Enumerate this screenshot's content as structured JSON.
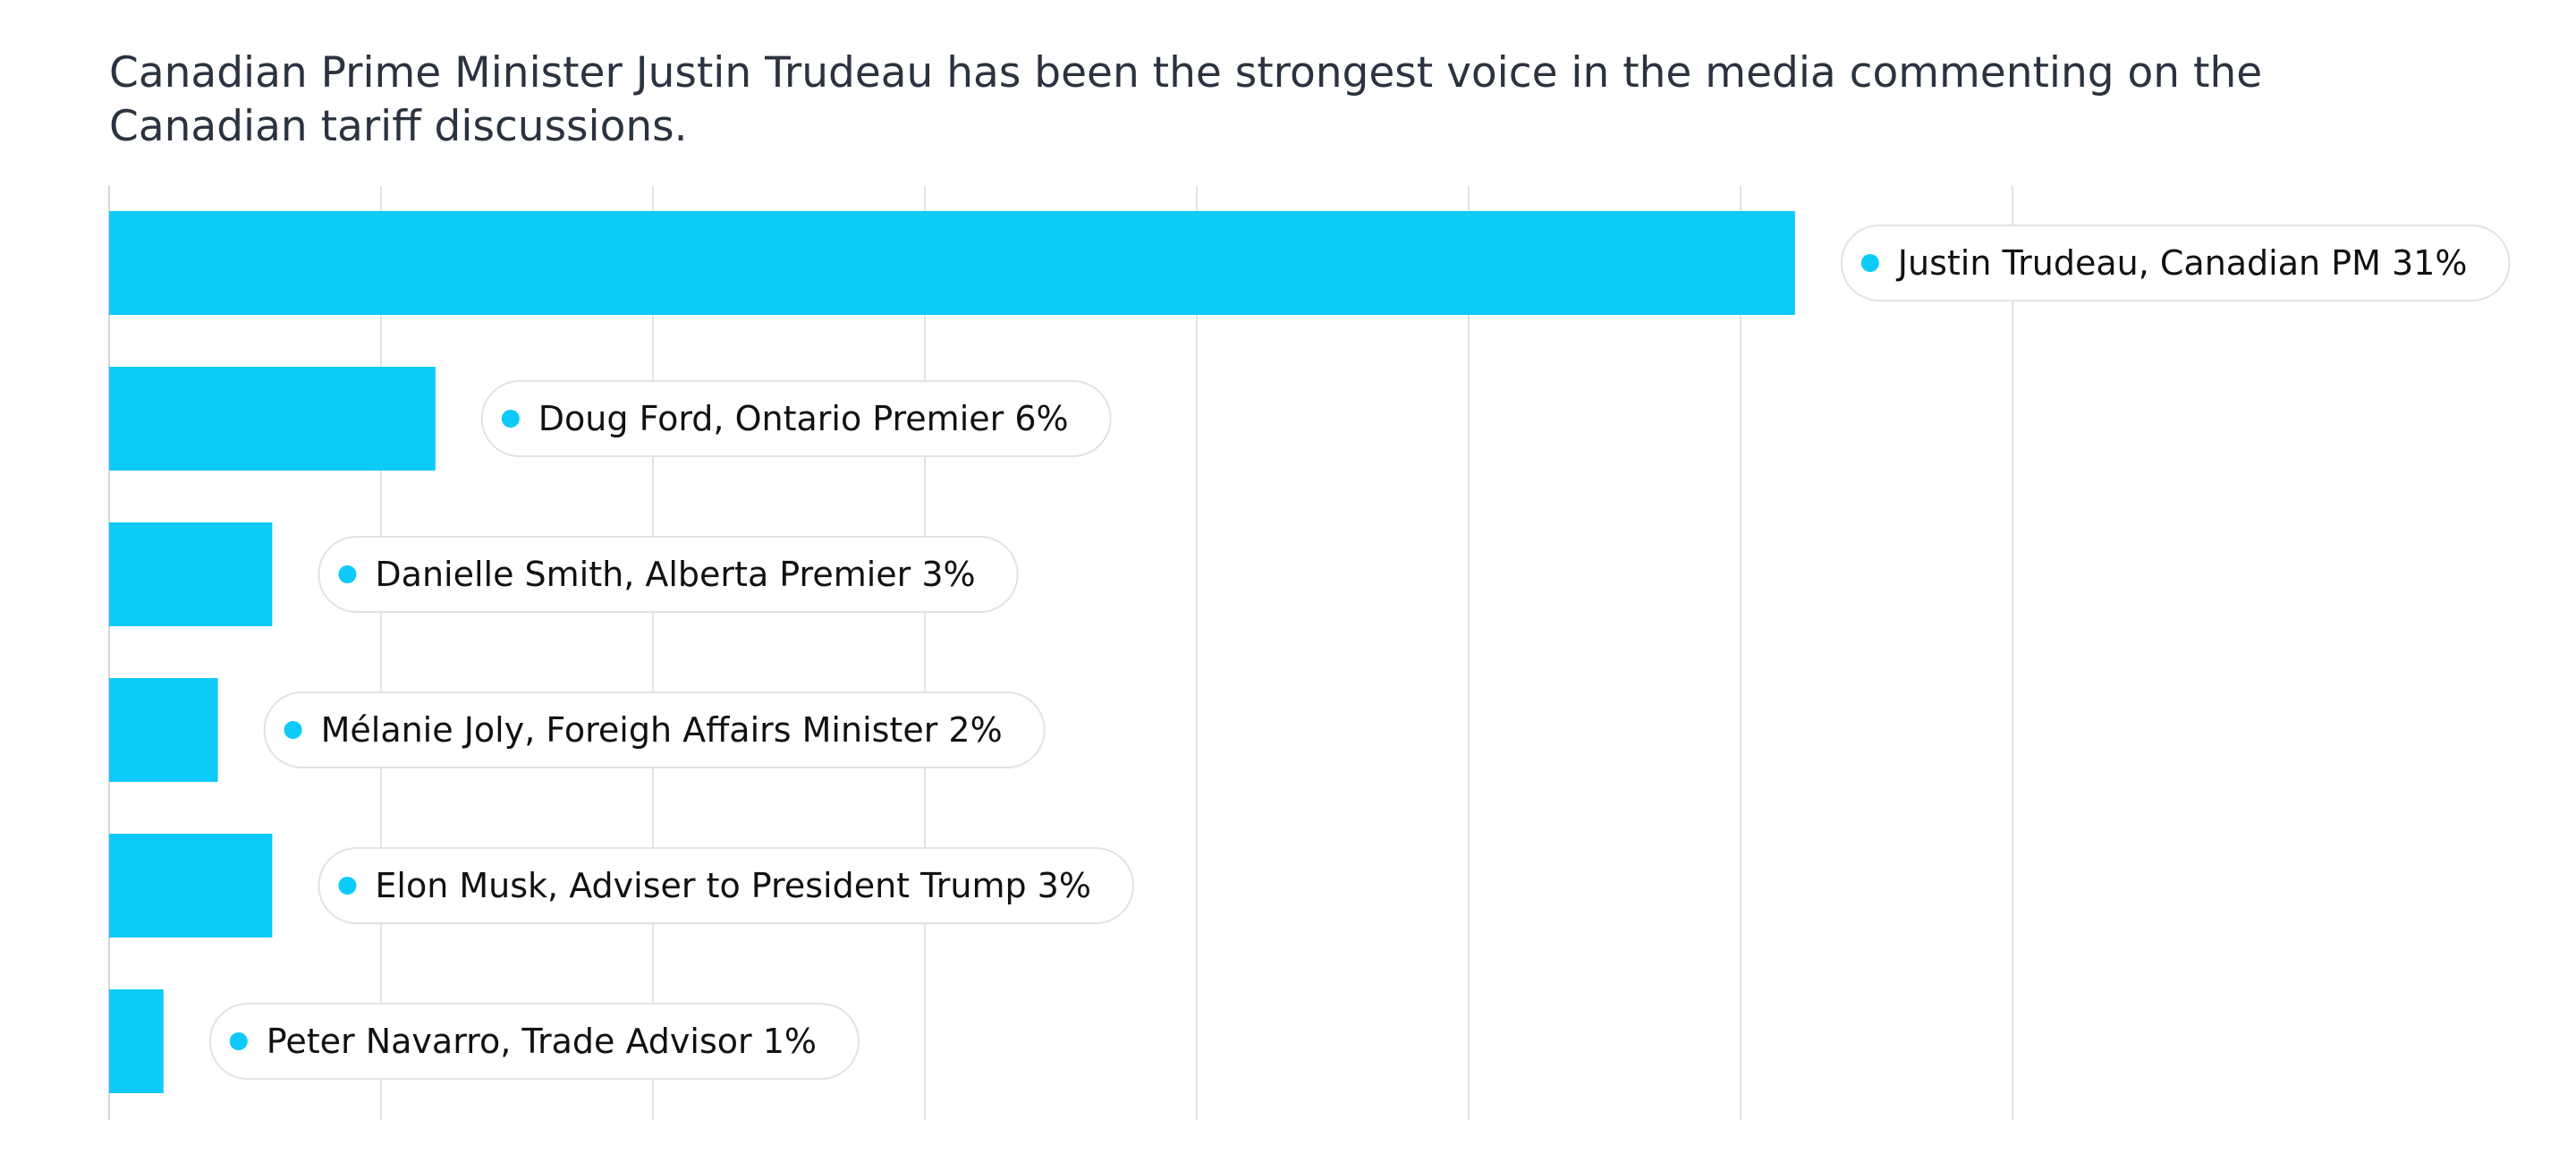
{
  "chart_data": {
    "type": "bar",
    "orientation": "horizontal",
    "title": "Canadian Prime Minister Justin Trudeau has been the strongest voice in the media commenting on the Canadian tariff discussions.",
    "xlabel": "",
    "ylabel": "",
    "xlim": [
      0,
      35
    ],
    "grid": true,
    "tick_step": 5,
    "legend": "none",
    "bar_color": "#0dcaf8",
    "categories": [
      "Justin Trudeau, Canadian PM",
      "Doug Ford, Ontario Premier",
      "Danielle Smith, Alberta Premier",
      "Mélanie Joly, Foreigh Affairs Minister",
      "Elon Musk, Adviser to President Trump",
      "Peter Navarro, Trade Advisor"
    ],
    "values": [
      31,
      6,
      3,
      2,
      3,
      1
    ],
    "labels": [
      "Justin Trudeau, Canadian PM 31%",
      "Doug Ford, Ontario Premier 6%",
      "Danielle Smith, Alberta Premier 3%",
      "Mélanie Joly, Foreigh Affairs Minister 2%",
      "Elon Musk, Adviser to President Trump 3%",
      "Peter Navarro, Trade Advisor 1%"
    ]
  }
}
